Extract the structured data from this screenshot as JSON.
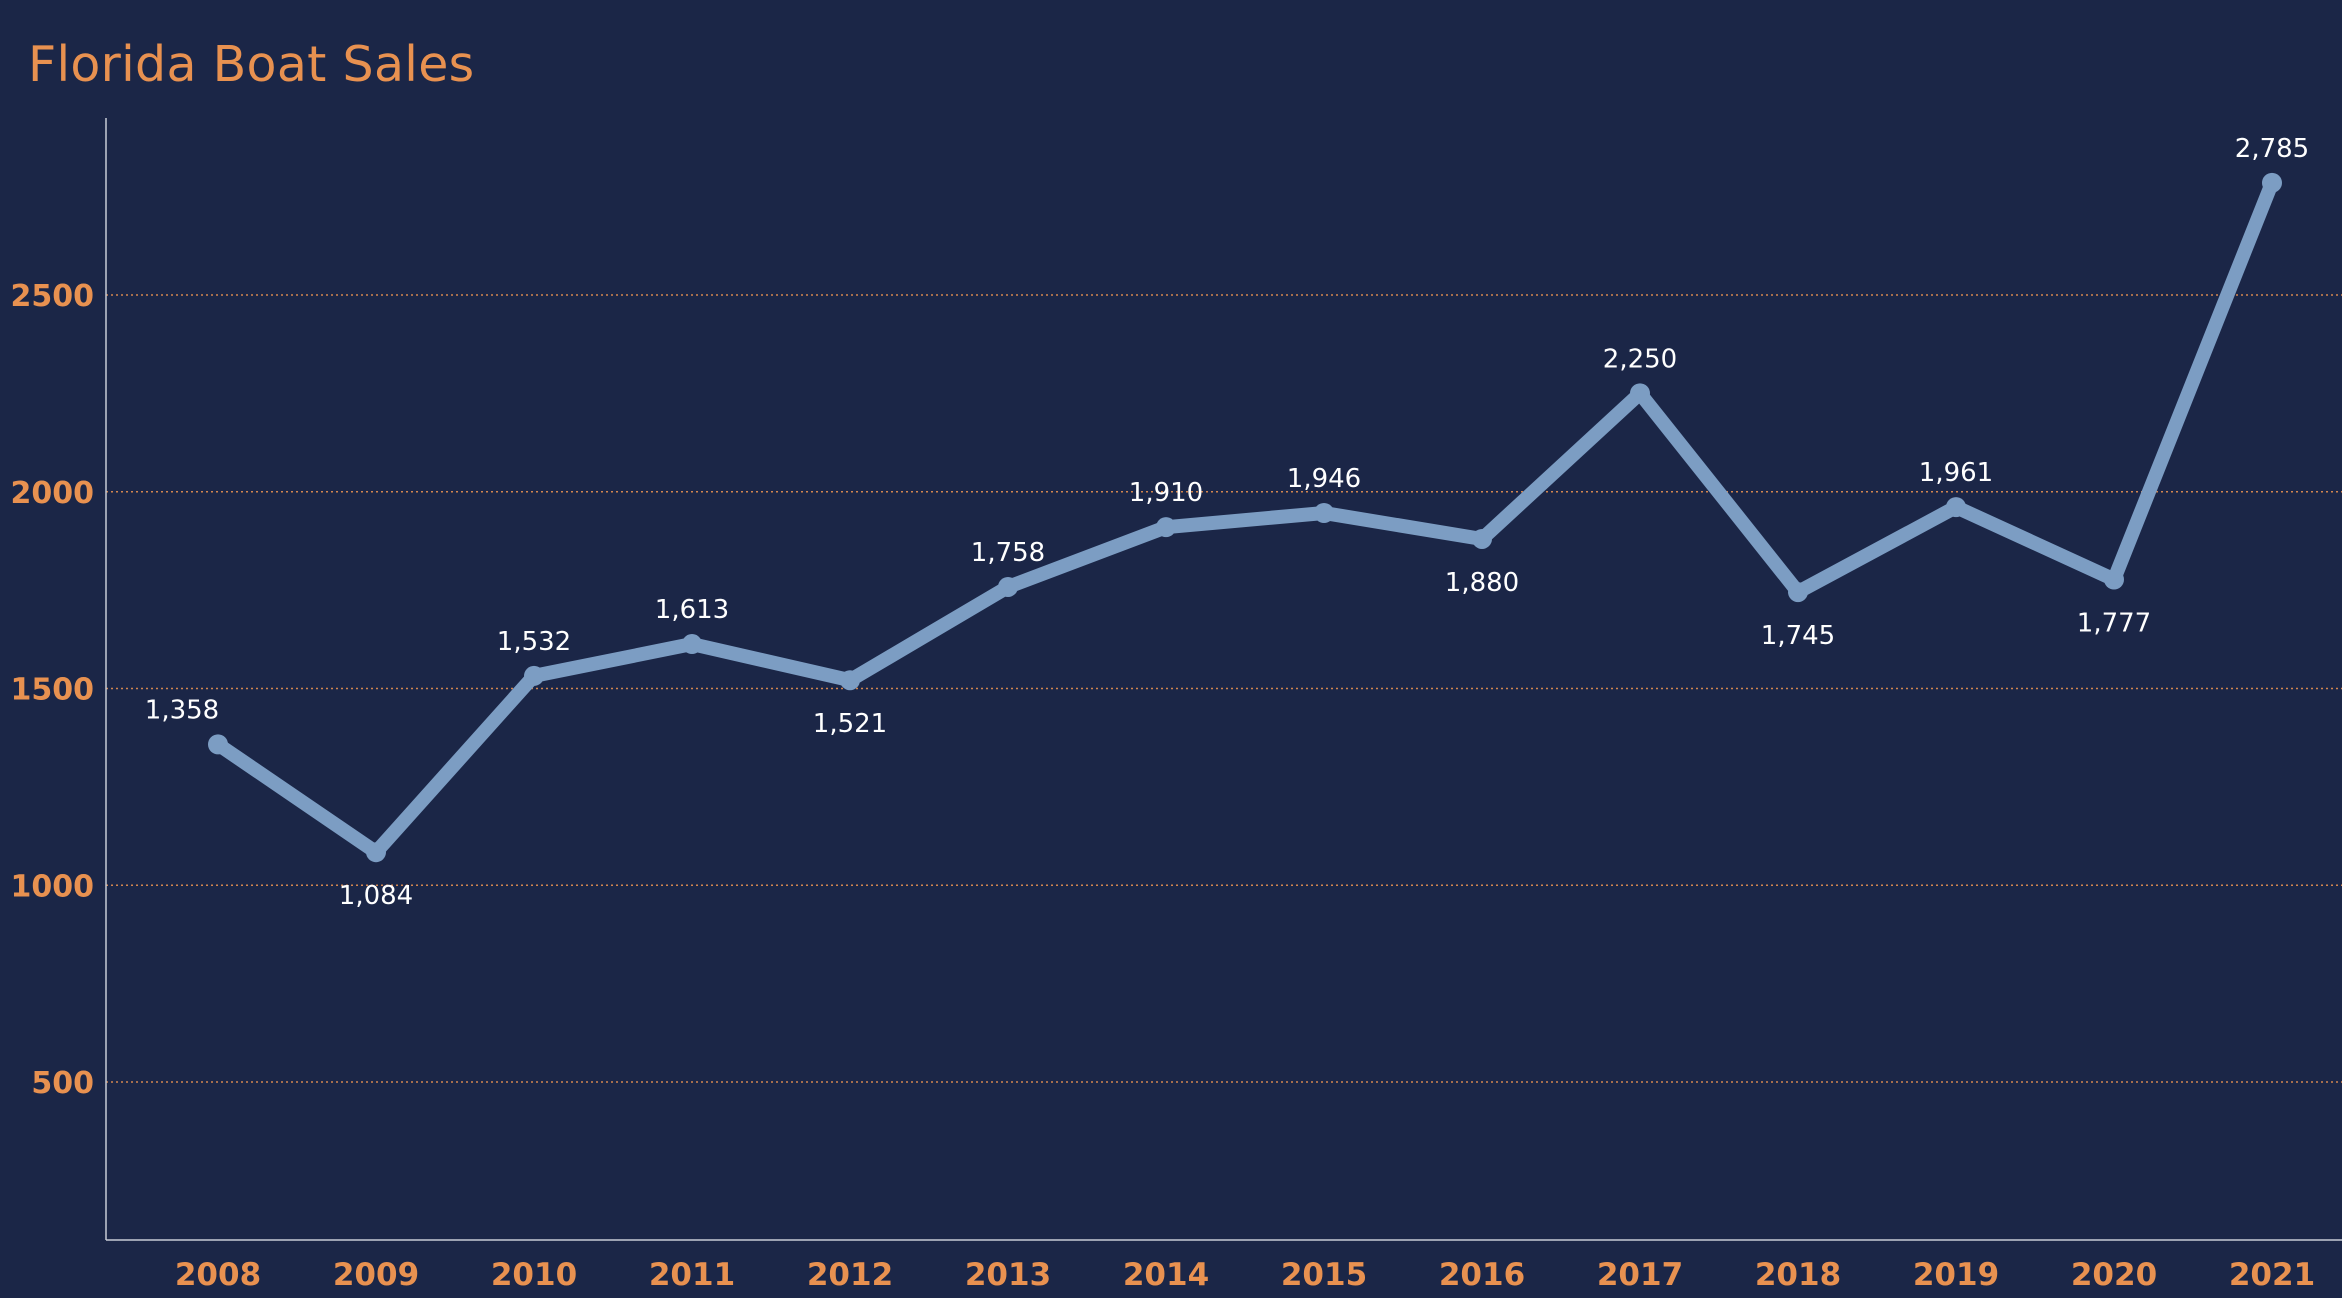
{
  "chart_data": {
    "type": "line",
    "title": "Florida Boat Sales",
    "xlabel": "",
    "ylabel": "",
    "categories": [
      "2008",
      "2009",
      "2010",
      "2011",
      "2012",
      "2013",
      "2014",
      "2015",
      "2016",
      "2017",
      "2018",
      "2019",
      "2020",
      "2021"
    ],
    "series": [
      {
        "values": [
          1358,
          1084,
          1532,
          1613,
          1521,
          1758,
          1910,
          1946,
          1880,
          2250,
          1745,
          1961,
          1777,
          2785
        ],
        "labels": [
          "1,358",
          "1,084",
          "1,532",
          "1,613",
          "1,521",
          "1,758",
          "1,910",
          "1,946",
          "1,880",
          "2,250",
          "1,745",
          "1,961",
          "1,777",
          "2,785"
        ],
        "label_position": [
          "above",
          "below",
          "above",
          "above",
          "below",
          "above",
          "above",
          "above",
          "below",
          "above",
          "below",
          "above",
          "below",
          "above"
        ],
        "color": "#7c9dc3"
      }
    ],
    "yticks": [
      500,
      1000,
      1500,
      2000,
      2500
    ],
    "ylim": [
      100,
      2850
    ],
    "grid": true,
    "grid_style": "dotted",
    "legend": "none",
    "colors": {
      "background": "#1b2647",
      "accent": "#e89150",
      "line": "#7c9dc3",
      "data_label": "#ffffff",
      "axis": "#c8ccd6"
    }
  }
}
